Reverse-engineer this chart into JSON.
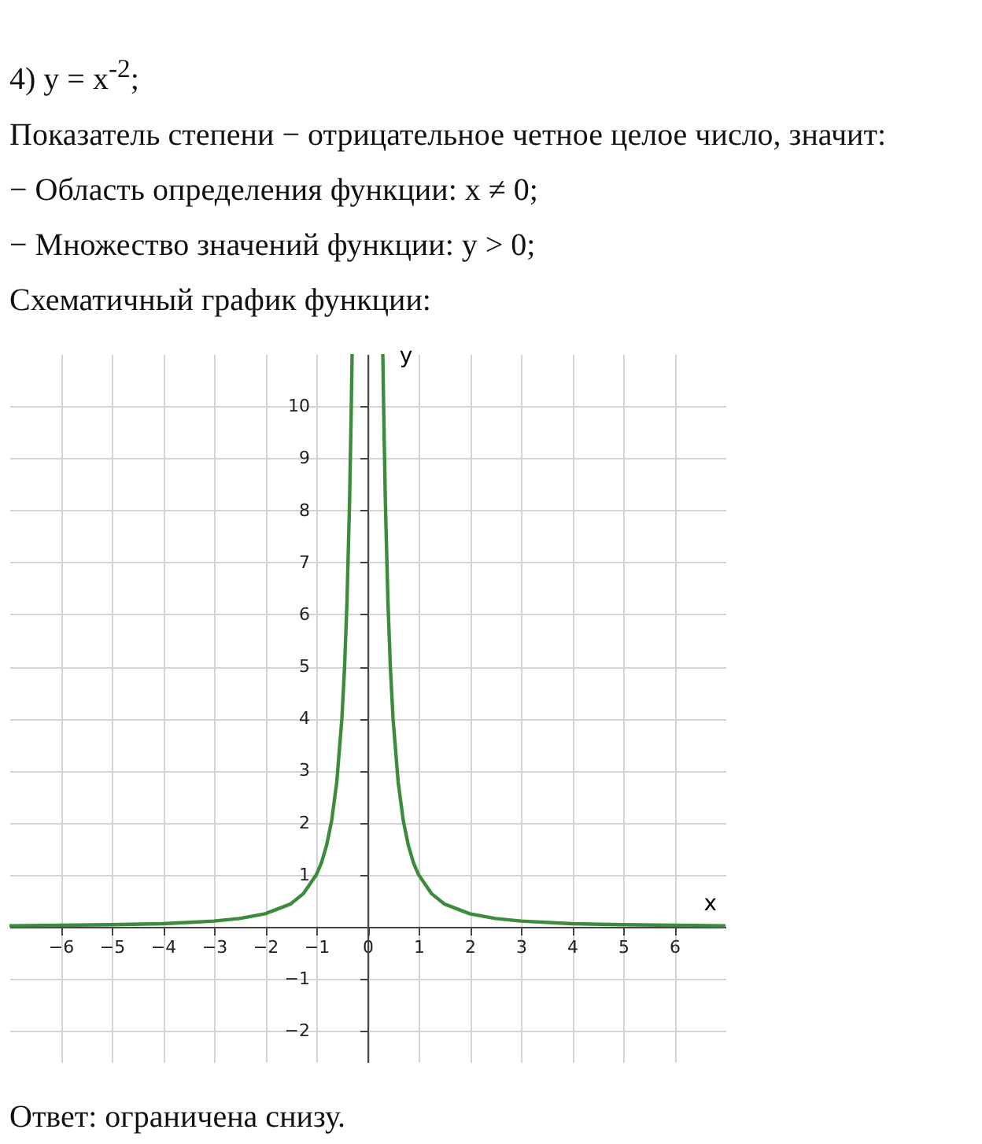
{
  "chart_data": {
    "type": "line",
    "title": "4) y = x$^{-2}$;",
    "annotations": [
      "Показатель степени − отрицательное четное целое число, значит:",
      "− Область определения функции:  x ≠ 0;",
      "− Множество значений функции:  y > 0;",
      "Схематичный график функции:",
      "Ответ:  ограничена снизу."
    ],
    "xlabel": "x",
    "ylabel": "y",
    "series": [
      {
        "color": "#3d8b3d",
        "x": [
          -7,
          -6,
          -5,
          -4,
          -3,
          -2.5,
          -2,
          -1.5,
          -1.25,
          -1,
          -0.9,
          -0.8,
          -0.7,
          -0.6,
          -0.5,
          -0.45,
          -0.4,
          -0.35,
          -0.32,
          -0.3
        ],
        "values": [
          0.02,
          0.03,
          0.04,
          0.06,
          0.11,
          0.16,
          0.25,
          0.44,
          0.64,
          1,
          1.23,
          1.56,
          2.04,
          2.78,
          4,
          4.94,
          6.25,
          8.16,
          9.77,
          11
        ]
      },
      {
        "color": "#3d8b3d",
        "x": [
          0.3,
          0.32,
          0.35,
          0.4,
          0.45,
          0.5,
          0.6,
          0.7,
          0.8,
          0.9,
          1,
          1.25,
          1.5,
          2,
          2.5,
          3,
          4,
          5,
          6,
          7
        ],
        "values": [
          11,
          9.77,
          8.16,
          6.25,
          4.94,
          4,
          2.78,
          2.04,
          1.56,
          1.23,
          1,
          0.64,
          0.44,
          0.25,
          0.16,
          0.11,
          0.06,
          0.04,
          0.03,
          0.02
        ]
      }
    ],
    "xlim": [
      -7,
      7
    ],
    "ylim": [
      -2.6,
      11
    ],
    "xticks": [
      -6,
      -5,
      -4,
      -3,
      -2,
      -1,
      0,
      1,
      2,
      3,
      4,
      5,
      6
    ],
    "yticks": [
      -2,
      -1,
      1,
      2,
      3,
      4,
      5,
      6,
      7,
      8,
      9,
      10
    ],
    "grid": true,
    "line_style": "solid"
  }
}
